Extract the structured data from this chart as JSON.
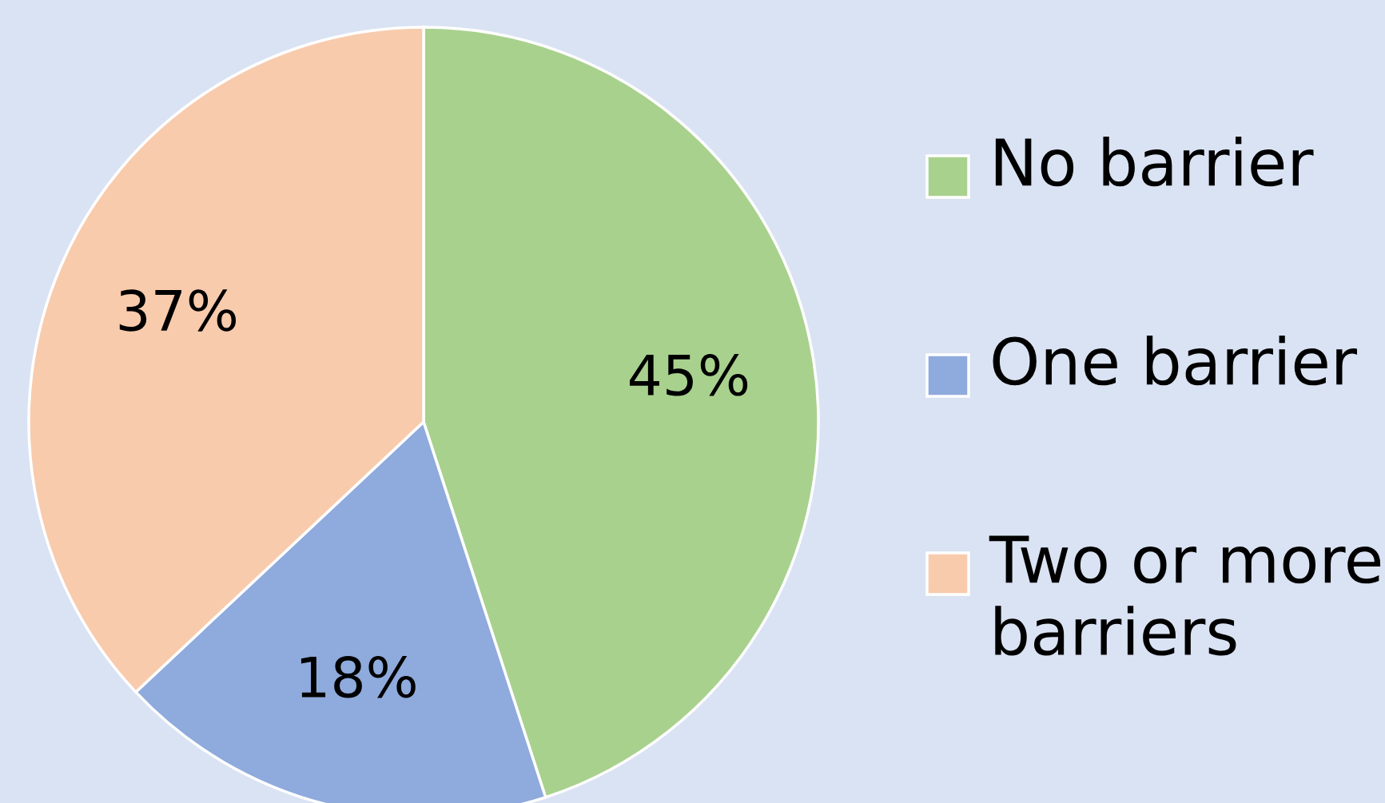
{
  "chart_data": {
    "type": "pie",
    "categories": [
      "No barrier",
      "One barrier",
      "Two or more barriers"
    ],
    "values": [
      45,
      18,
      37
    ],
    "colors": [
      "#a9d18e",
      "#8faadc",
      "#f8cbad"
    ],
    "value_labels": [
      "45%",
      "18%",
      "37%"
    ],
    "legend": "right"
  }
}
